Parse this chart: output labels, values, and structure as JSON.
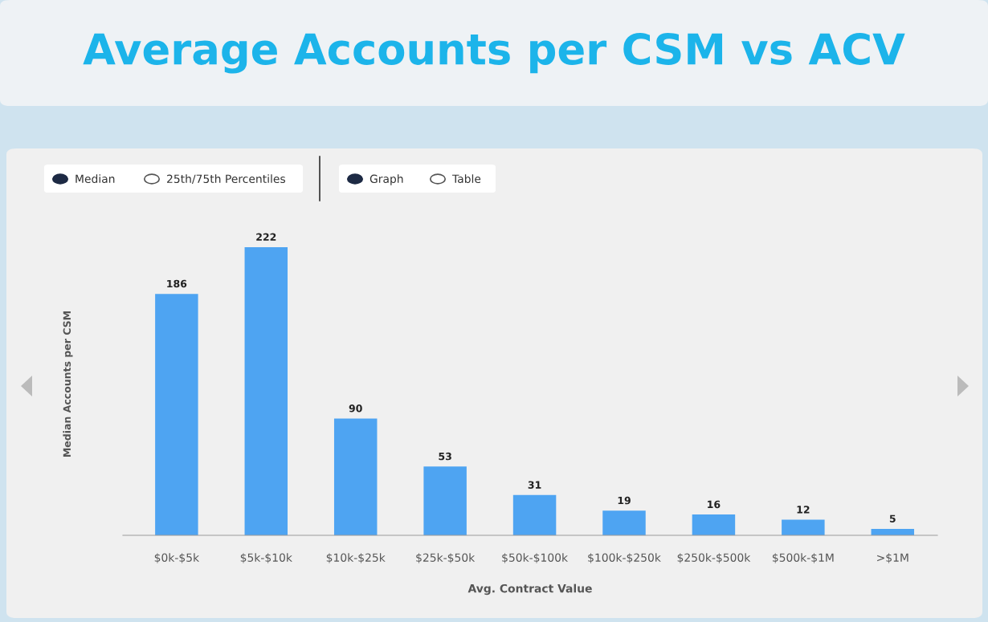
{
  "chart_data": {
    "type": "bar",
    "title": "Average Accounts per CSM vs ACV",
    "xlabel": "Avg. Contract Value",
    "ylabel": "Median Accounts per CSM",
    "categories": [
      "$0k-$5k",
      "$5k-$10k",
      "$10k-$25k",
      "$25k-$50k",
      "$50k-$100k",
      "$100k-$250k",
      "$250k-$500k",
      "$500k-$1M",
      ">$1M"
    ],
    "values": [
      186,
      222,
      90,
      53,
      31,
      19,
      16,
      12,
      5
    ],
    "color": "#4ea4f2",
    "data_labels": true,
    "grid": false,
    "legend": false,
    "annotations": [
      "Median",
      "25th/75th Percentiles",
      "Graph",
      "Table"
    ]
  }
}
